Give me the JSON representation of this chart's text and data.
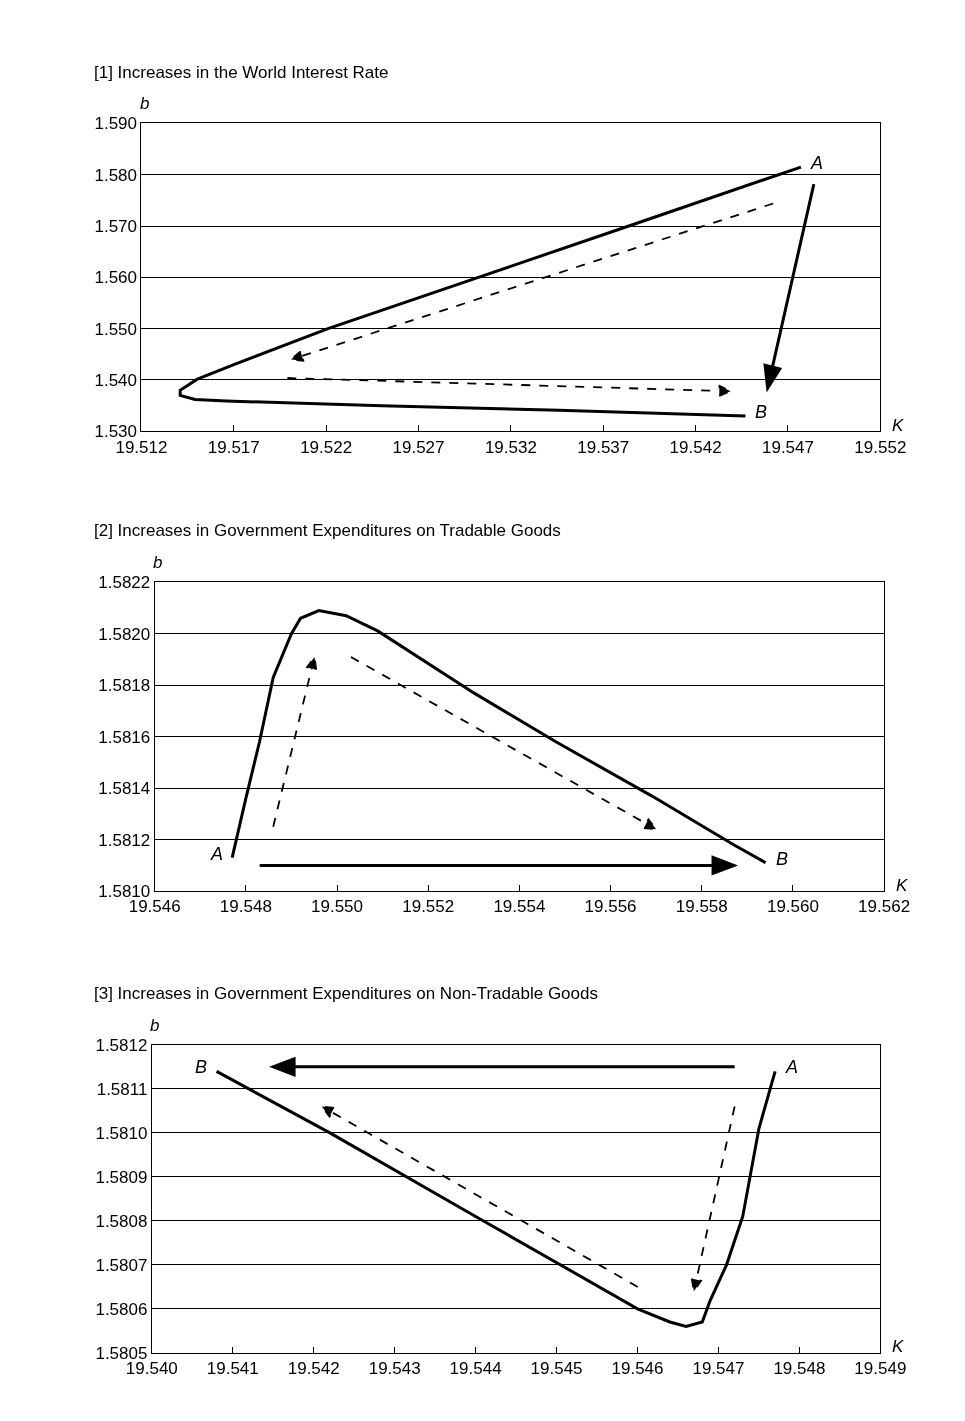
{
  "chart_data": [
    {
      "type": "line",
      "title": "[1] Increases in the World Interest Rate",
      "xlabel": "K",
      "ylabel": "b",
      "grid": "y",
      "marker": "none",
      "xlim": [
        19.512,
        19.552
      ],
      "ylim": [
        1.53,
        1.59
      ],
      "xticks": [
        {
          "value": 19.512,
          "label": "19.512"
        },
        {
          "value": 19.517,
          "label": "19.517"
        },
        {
          "value": 19.522,
          "label": "19.522"
        },
        {
          "value": 19.527,
          "label": "19.527"
        },
        {
          "value": 19.532,
          "label": "19.532"
        },
        {
          "value": 19.537,
          "label": "19.537"
        },
        {
          "value": 19.542,
          "label": "19.542"
        },
        {
          "value": 19.547,
          "label": "19.547"
        },
        {
          "value": 19.552,
          "label": "19.552"
        }
      ],
      "yticks": [
        {
          "value": 1.53,
          "label": "1.530"
        },
        {
          "value": 1.54,
          "label": "1.540"
        },
        {
          "value": 1.55,
          "label": "1.550"
        },
        {
          "value": 1.56,
          "label": "1.560"
        },
        {
          "value": 1.57,
          "label": "1.570"
        },
        {
          "value": 1.58,
          "label": "1.580"
        },
        {
          "value": 1.59,
          "label": "1.590"
        }
      ],
      "series": [
        {
          "color": "#000000",
          "line_style": "solid",
          "x": [
            19.5477,
            19.5387,
            19.5304,
            19.5221,
            19.517,
            19.515,
            19.5141,
            19.5141,
            19.5149,
            19.5166,
            19.525,
            19.5346,
            19.5447
          ],
          "values": [
            1.5815,
            1.5704,
            1.5602,
            1.55,
            1.543,
            1.5401,
            1.538,
            1.537,
            1.5362,
            1.5359,
            1.535,
            1.5341,
            1.533
          ]
        }
      ],
      "annotations": [
        {
          "text": "A",
          "x": 19.5477,
          "y": 1.5815
        },
        {
          "text": "B",
          "x": 19.5447,
          "y": 1.533
        }
      ]
    },
    {
      "type": "line",
      "title": "[2] Increases in Government Expenditures on Tradable Goods",
      "xlabel": "K",
      "ylabel": "b",
      "grid": "y",
      "marker": "none",
      "xlim": [
        19.546,
        19.562
      ],
      "ylim": [
        1.581,
        1.5822
      ],
      "xticks": [
        {
          "value": 19.546,
          "label": "19.546"
        },
        {
          "value": 19.548,
          "label": "19.548"
        },
        {
          "value": 19.55,
          "label": "19.550"
        },
        {
          "value": 19.552,
          "label": "19.552"
        },
        {
          "value": 19.554,
          "label": "19.554"
        },
        {
          "value": 19.556,
          "label": "19.556"
        },
        {
          "value": 19.558,
          "label": "19.558"
        },
        {
          "value": 19.56,
          "label": "19.560"
        },
        {
          "value": 19.562,
          "label": "19.562"
        }
      ],
      "yticks": [
        {
          "value": 1.581,
          "label": "1.5810"
        },
        {
          "value": 1.5812,
          "label": "1.5812"
        },
        {
          "value": 1.5814,
          "label": "1.5814"
        },
        {
          "value": 1.5816,
          "label": "1.5816"
        },
        {
          "value": 1.5818,
          "label": "1.5818"
        },
        {
          "value": 1.582,
          "label": "1.5820"
        },
        {
          "value": 1.5822,
          "label": "1.5822"
        }
      ],
      "series": [
        {
          "color": "#000000",
          "line_style": "solid",
          "x": [
            19.5477,
            19.548,
            19.5483,
            19.5486,
            19.549,
            19.5492,
            19.5496,
            19.5502,
            19.5509,
            19.553,
            19.5548,
            19.5569,
            19.5587,
            19.5594
          ],
          "values": [
            1.58113,
            1.58136,
            1.58158,
            1.58183,
            1.582,
            1.58206,
            1.58209,
            1.58207,
            1.58201,
            1.58177,
            1.58158,
            1.58137,
            1.58118,
            1.58111
          ]
        }
      ],
      "annotations": [
        {
          "text": "A",
          "x": 19.5477,
          "y": 1.58113
        },
        {
          "text": "B",
          "x": 19.5594,
          "y": 1.58111
        }
      ]
    },
    {
      "type": "line",
      "title": "[3] Increases in Government Expenditures on Non-Tradable Goods",
      "xlabel": "K",
      "ylabel": "b",
      "grid": "y",
      "marker": "none",
      "xlim": [
        19.54,
        19.549
      ],
      "ylim": [
        1.5805,
        1.5812
      ],
      "xticks": [
        {
          "value": 19.54,
          "label": "19.540"
        },
        {
          "value": 19.541,
          "label": "19.541"
        },
        {
          "value": 19.542,
          "label": "19.542"
        },
        {
          "value": 19.543,
          "label": "19.543"
        },
        {
          "value": 19.544,
          "label": "19.544"
        },
        {
          "value": 19.545,
          "label": "19.545"
        },
        {
          "value": 19.546,
          "label": "19.546"
        },
        {
          "value": 19.547,
          "label": "19.547"
        },
        {
          "value": 19.548,
          "label": "19.548"
        },
        {
          "value": 19.549,
          "label": "19.549"
        }
      ],
      "yticks": [
        {
          "value": 1.5805,
          "label": "1.5805"
        },
        {
          "value": 1.5806,
          "label": "1.5806"
        },
        {
          "value": 1.5807,
          "label": "1.5807"
        },
        {
          "value": 1.5808,
          "label": "1.5808"
        },
        {
          "value": 1.5809,
          "label": "1.5809"
        },
        {
          "value": 1.581,
          "label": "1.5810"
        },
        {
          "value": 1.5811,
          "label": "1.5811"
        },
        {
          "value": 1.5812,
          "label": "1.5812"
        }
      ],
      "series": [
        {
          "color": "#000000",
          "line_style": "solid",
          "x": [
            19.5477,
            19.5475,
            19.5473,
            19.5471,
            19.5469,
            19.5468,
            19.5466,
            19.5464,
            19.546,
            19.544,
            19.5422,
            19.5408
          ],
          "values": [
            1.58114,
            1.58101,
            1.58081,
            1.5807,
            1.58062,
            1.58057,
            1.58056,
            1.58057,
            1.5806,
            1.58081,
            1.581,
            1.58114
          ]
        }
      ],
      "annotations": [
        {
          "text": "A",
          "x": 19.5477,
          "y": 1.58114
        },
        {
          "text": "B",
          "x": 19.5408,
          "y": 1.58114
        }
      ]
    }
  ]
}
